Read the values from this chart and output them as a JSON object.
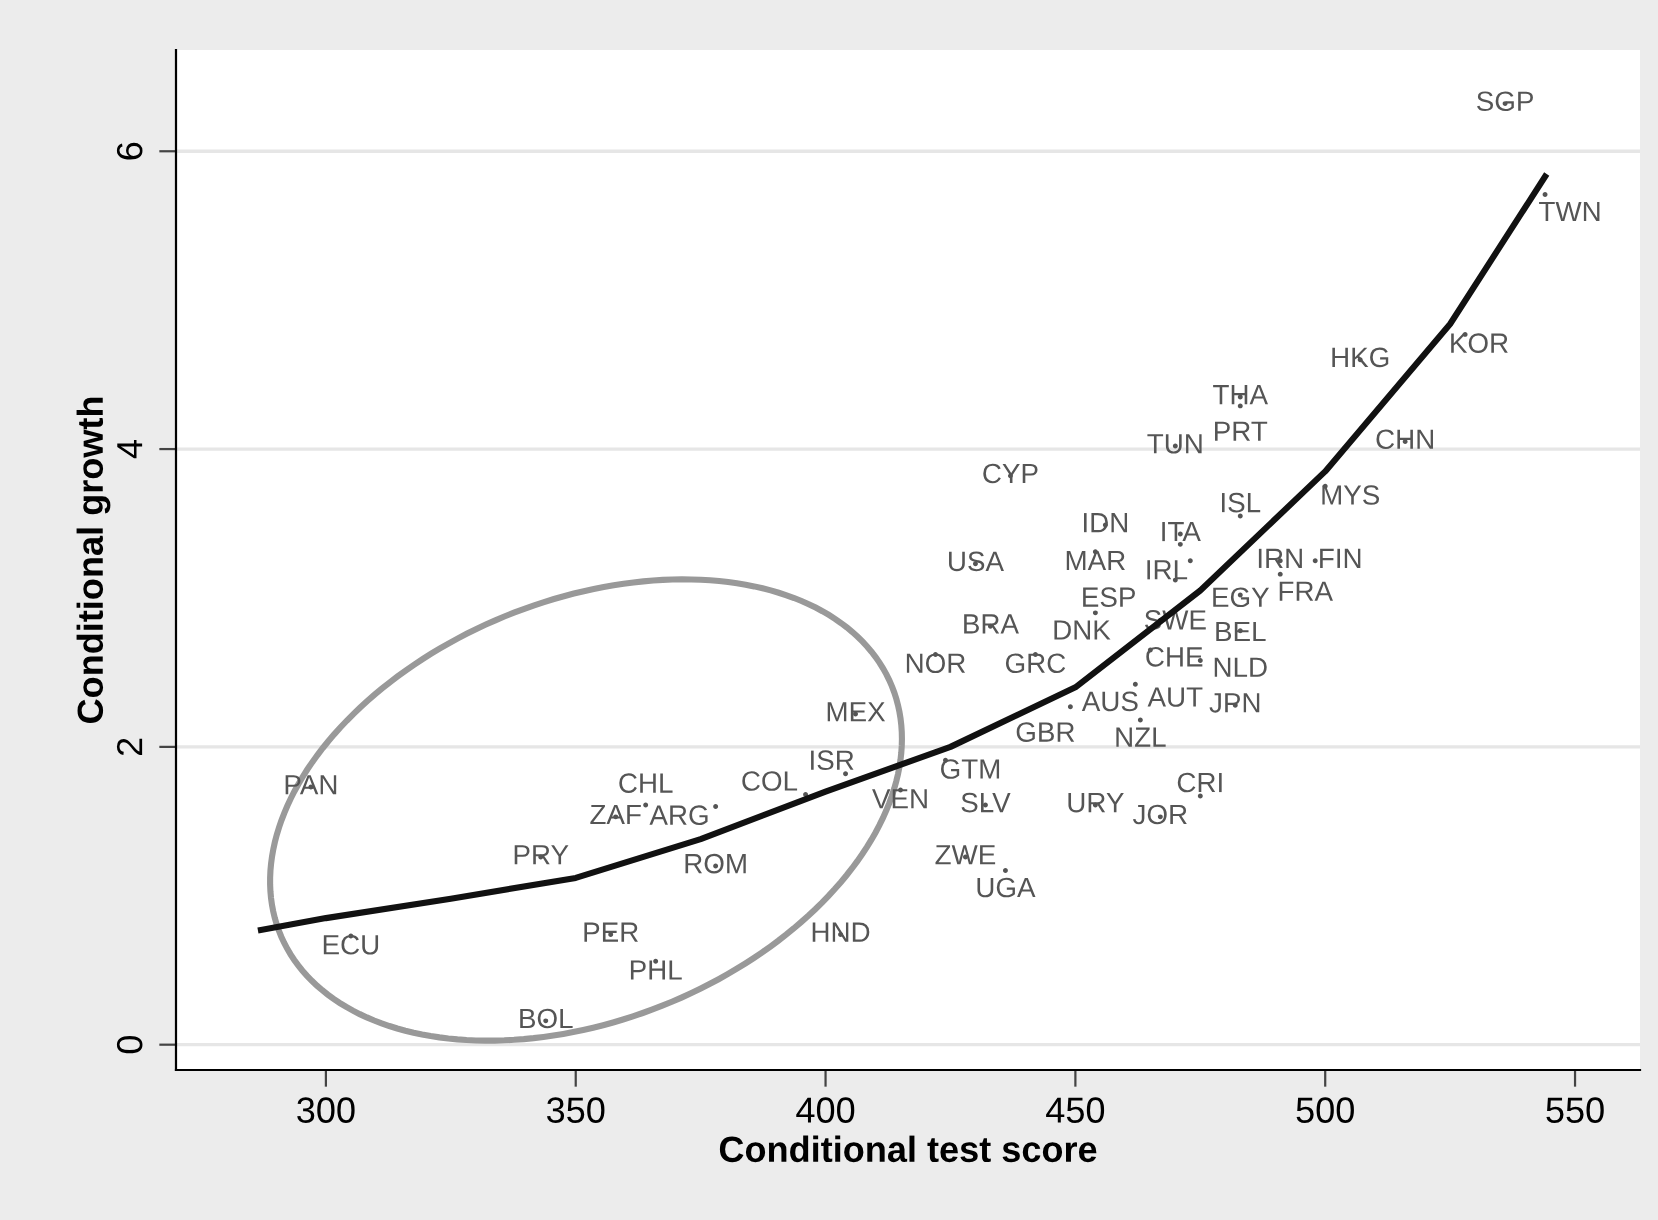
{
  "chart_data": {
    "type": "scatter",
    "xlabel": "Conditional test score",
    "ylabel": "Conditional growth",
    "xlim": [
      270,
      563
    ],
    "ylim": [
      -0.17,
      6.68
    ],
    "xticks": [
      300,
      350,
      400,
      450,
      500,
      550
    ],
    "yticks": [
      0,
      2,
      4,
      6
    ],
    "grid": "y",
    "marker": "none",
    "series": [
      {
        "type": "scatter",
        "color": "#555555",
        "x": [
          536,
          544,
          528,
          507,
          516,
          483,
          483,
          470,
          500,
          437,
          456,
          454,
          471,
          471,
          483,
          430,
          473,
          470,
          491,
          498,
          491,
          483,
          454,
          467,
          483,
          465,
          475,
          462,
          463,
          482,
          449,
          433,
          422,
          442,
          406,
          404,
          396,
          415,
          424,
          432,
          428,
          436,
          454,
          467,
          475,
          297,
          358,
          364,
          378,
          343,
          378,
          305,
          357,
          366,
          403,
          344
        ],
        "values": [
          6.32,
          5.71,
          4.77,
          4.6,
          4.05,
          4.35,
          4.29,
          4.02,
          3.75,
          3.82,
          3.49,
          3.31,
          3.43,
          3.36,
          3.55,
          3.23,
          3.25,
          3.12,
          3.25,
          3.25,
          3.16,
          3.02,
          2.9,
          2.85,
          2.78,
          2.65,
          2.58,
          2.42,
          2.18,
          2.28,
          2.27,
          2.81,
          2.62,
          2.62,
          2.22,
          1.82,
          1.68,
          1.71,
          1.91,
          1.61,
          1.26,
          1.17,
          1.61,
          1.53,
          1.67,
          1.73,
          1.53,
          1.61,
          1.6,
          1.26,
          1.2,
          0.73,
          0.74,
          0.56,
          0.74,
          0.16
        ],
        "value_labels": [
          "SGP",
          "TWN",
          "KOR",
          "HKG",
          "CHN",
          "THA",
          "PRT",
          "TUN",
          "MYS",
          "CYP",
          "IDN",
          "MAR",
          "ITA",
          "IRL",
          "ISL",
          "USA",
          "EGY",
          "ESP",
          "IRN",
          "FIN",
          "FRA",
          "BEL",
          "DNK",
          "CHE",
          "NLD",
          "SWE",
          "AUT",
          "AUS",
          "NZL",
          "JPN",
          "GBR",
          "BRA",
          "NOR",
          "GRC",
          "MEX",
          "ISR",
          "COL",
          "VEN",
          "GTM",
          "SLV",
          "ZWE",
          "UGA",
          "URY",
          "JOR",
          "CRI",
          "PAN",
          "ZAF",
          "CHL",
          "ARG",
          "PRY",
          "ROM",
          "ECU",
          "PER",
          "PHL",
          "HND",
          "BOL"
        ]
      },
      {
        "type": "line",
        "color": "#111111",
        "x": [
          287,
          300,
          325,
          350,
          375,
          400,
          425,
          450,
          475,
          500,
          525,
          544
        ],
        "values": [
          0.77,
          0.85,
          0.98,
          1.12,
          1.38,
          1.7,
          2.0,
          2.4,
          3.05,
          3.85,
          4.84,
          5.83
        ]
      }
    ]
  }
}
